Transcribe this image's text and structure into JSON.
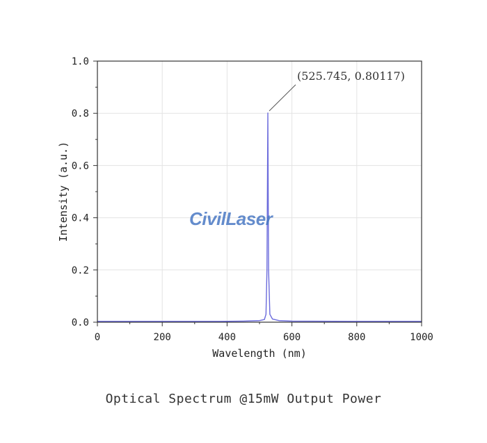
{
  "chart_data": {
    "type": "line",
    "xlabel": "Wavelength (nm)",
    "ylabel": "Intensity (a.u.)",
    "xlim": [
      0,
      1000
    ],
    "ylim": [
      0,
      1.0
    ],
    "xticks": [
      "0",
      "200",
      "400",
      "600",
      "800",
      "1000"
    ],
    "yticks": [
      "0.0",
      "0.2",
      "0.4",
      "0.6",
      "0.8",
      "1.0"
    ],
    "grid": true,
    "series": [
      {
        "color": "#6b6bdc",
        "x": [
          0,
          380,
          450,
          500,
          515,
          520,
          523,
          525.745,
          528,
          532,
          540,
          560,
          600,
          800,
          1000
        ],
        "y": [
          0.003,
          0.003,
          0.004,
          0.006,
          0.01,
          0.03,
          0.2,
          0.80117,
          0.2,
          0.03,
          0.012,
          0.006,
          0.004,
          0.003,
          0.003
        ]
      }
    ],
    "annotations": [
      {
        "text": "(525.745, 0.80117)",
        "x": 525.745,
        "y": 0.80117
      }
    ]
  },
  "caption": "Optical Spectrum @15mW Output Power",
  "watermark": "CivilLaser"
}
